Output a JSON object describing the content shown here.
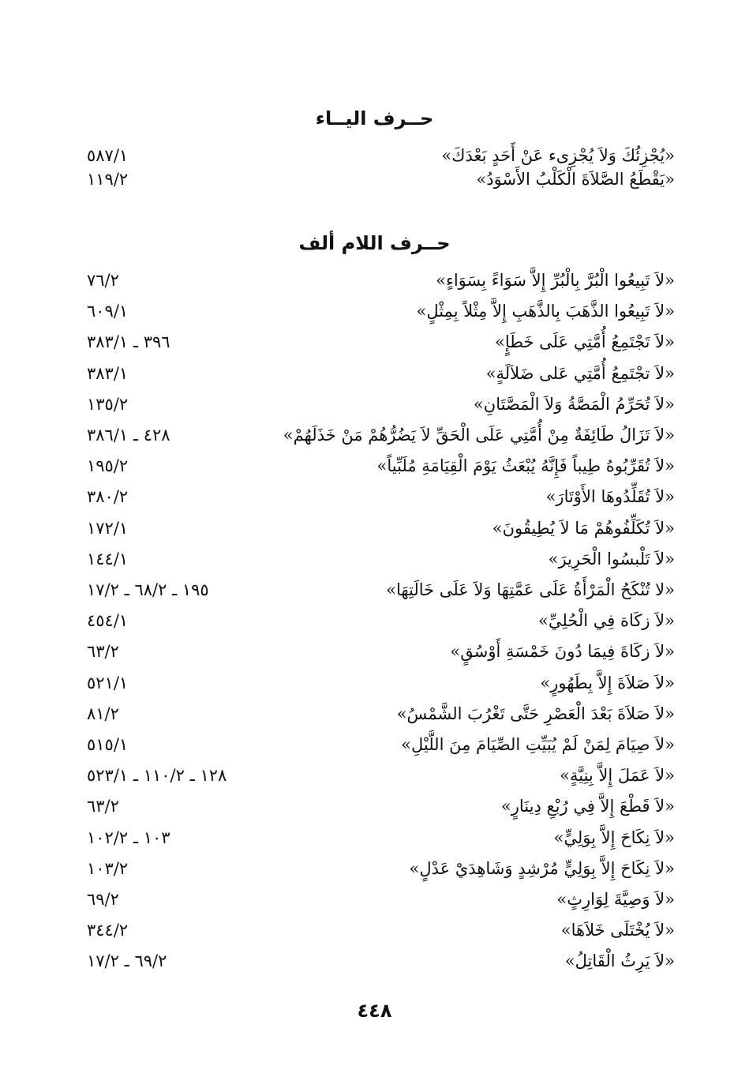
{
  "sections": [
    {
      "heading": "حــرف اليــاء",
      "entries": [
        {
          "text": "«يُجْزِئُكَ وَلاَ يُجْزِىء عَنْ أَحَدٍ بَعْدَكَ»",
          "ref": "٥٨٧/١"
        },
        {
          "text": "«يَقْطَعُ الصَّلاَةَ الْكَلْبُ الأَسْوَدُ»",
          "ref": "١١٩/٢"
        }
      ]
    },
    {
      "heading": "حــرف اللام ألف",
      "entries": [
        {
          "text": "«لاَ تَبِيعُوا الْبُرَّ بِالْبُرِّ إِلاَّ سَوَاءً بِسَوَاءٍ»",
          "ref": "٧٦/٢"
        },
        {
          "text": "«لاَ تَبِيعُوا الذَّهَبَ بِالذَّهَبِ إِلاَّ مِثْلاً بِمِثْلٍ»",
          "ref": "٦٠٩/١"
        },
        {
          "text": "«لاَ تَجْتَمِعُ أُمَّتِي عَلَى خَطَإٍ»",
          "ref": "٣٩٦ ـ ٣٨٣/١"
        },
        {
          "text": "«لاَ تجْتَمِعُ أُمَّتِي عَلى ضَلاَلَةٍ»",
          "ref": "٣٨٣/١"
        },
        {
          "text": "«لاَ تُحَرِّمُ الْمَصَّةُ وَلاَ الْمَصَّتَانِ»",
          "ref": "١٣٥/٢"
        },
        {
          "text": "«لاَ تَزَالُ طَائِفَةٌ مِنْ أُمَّتِي عَلَى الْحَقِّ لاَ يَضُرُّهُمْ مَنْ خَذَلَهُمْ»",
          "ref": "٤٢٨ ـ ٣٨٦/١"
        },
        {
          "text": "«لاَ تُقَرِّبُوهُ طِيباً فَإِنَّهُ يُبْعَثُ يَوْمَ الْقِيَامَةِ مُلَبِّياً»",
          "ref": "١٩٥/٢"
        },
        {
          "text": "«لاَ تُقَلِّدُوهَا الأَوْتَارَ»",
          "ref": "٣٨٠/٢"
        },
        {
          "text": "«لاَ تُكَلِّفُوهُمْ مَا لاَ يُطِيقُونَ»",
          "ref": "١٧٢/١"
        },
        {
          "text": "«لاَ تَلْبسُوا الْحَرِيرَ»",
          "ref": "١٤٤/١"
        },
        {
          "text": "«لا تُنْكَحُ الْمَرْأَةُ عَلَى عَمَّتِهَا وَلاَ عَلَى خَالَتِهَا»",
          "ref": "١٩٥ ـ ٦٨/٢ ـ ١٧/٢"
        },
        {
          "text": "«لاَ زكَاة فِي الْحُلِيِّ»",
          "ref": "٤٥٤/١"
        },
        {
          "text": "«لاَ زكَاةَ فِيمَا دُونَ خَمْسَةِ أَوْسُقٍ»",
          "ref": "٦٣/٢"
        },
        {
          "text": "«لاَ صَلاَةَ إِلاَّ بِطَهُورٍ»",
          "ref": "٥٢١/١"
        },
        {
          "text": "«لاَ صَلاَةَ بَعْدَ الْعَصْرِ حَتَّى تَغْرُبَ الشَّمْسُ»",
          "ref": "٨١/٢"
        },
        {
          "text": "«لاَ صِيَامَ لِمَنْ لَمْ يُبَيِّتِ الصِّيَامَ مِنَ اللَّيْلِ»",
          "ref": "٥١٥/١"
        },
        {
          "text": "«لاَ عَمَلَ إِلاَّ بِنِيَّةٍ»",
          "ref": "١٢٨ ـ ١١٠/٢ ـ ٥٢٣/١"
        },
        {
          "text": "«لاَ قَطْعَ إِلاَّ فِي رُبْعِ دِينَارٍ»",
          "ref": "٦٣/٢"
        },
        {
          "text": "«لاَ نِكَاحَ إِلاَّ بِوَلِيٍّ»",
          "ref": "١٠٣ ـ ١٠٢/٢"
        },
        {
          "text": "«لاَ نِكَاحَ إِلاَّ بِوَلِيٍّ مُرْشِدٍ وَشَاهِدَيْ عَدْلٍ»",
          "ref": "١٠٣/٢"
        },
        {
          "text": "«لاَ وَصِيَّةَ لِوَارِثٍ»",
          "ref": "٦٩/٢"
        },
        {
          "text": "«لاَ يُخْتَلَى خَلاَهَا»",
          "ref": "٣٤٤/٢"
        },
        {
          "text": "«لاَ يَرِثُ الْقَاتِلُ»",
          "ref": "٦٩/٢ ـ ١٧/٢"
        }
      ]
    }
  ],
  "page_number": "٤٤٨"
}
